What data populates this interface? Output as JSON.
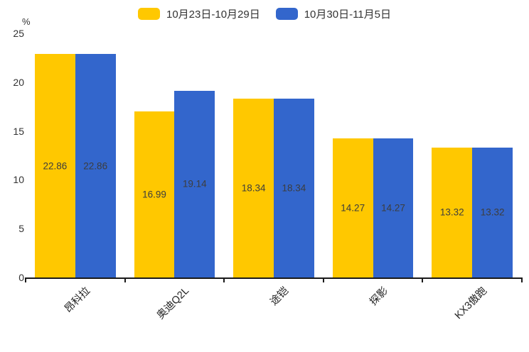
{
  "chart_data": {
    "type": "bar",
    "title": "",
    "unit_label": "%",
    "categories": [
      "昂科拉",
      "奥迪Q2L",
      "途铠",
      "探影",
      "KX3傲跑"
    ],
    "series": [
      {
        "name": "10月23日-10月29日",
        "color": "#FFC800",
        "values": [
          22.86,
          16.99,
          18.34,
          14.27,
          13.32
        ]
      },
      {
        "name": "10月30日-11月5日",
        "color": "#3366CC",
        "values": [
          22.86,
          19.14,
          18.34,
          14.27,
          13.32
        ]
      }
    ],
    "ylim": [
      0,
      25
    ],
    "yticks": [
      0,
      5,
      10,
      15,
      20,
      25
    ],
    "grid": false,
    "legend_position": "top",
    "data_labels": true,
    "xlabel_rotation": 45,
    "colors": {
      "axis": "#1a1a1a",
      "text": "#333333",
      "bar_label": "#3d3d3d"
    }
  }
}
